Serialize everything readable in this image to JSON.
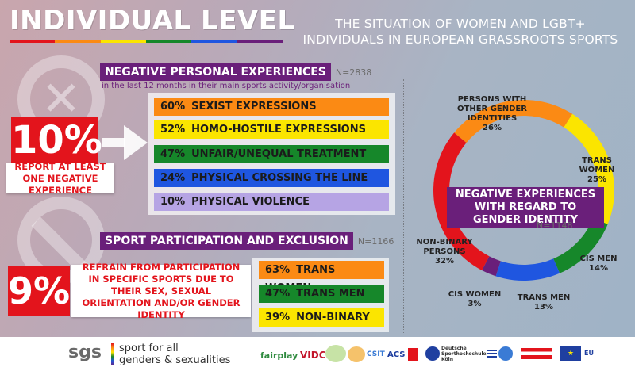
{
  "title": "INDIVIDUAL LEVEL",
  "subtitle_line1": "THE SITUATION OF WOMEN AND LGBT+",
  "subtitle_line2": "INDIVIDUALS IN EUROPEAN GRASSROOTS SPORTS",
  "colors": {
    "purple": "#6a1f7a",
    "red": "#e3141c",
    "orange": "#fb8a14",
    "yellow": "#fbe500",
    "green": "#16872a",
    "blue": "#1f56e0",
    "lavender": "#b6a4e4"
  },
  "negative": {
    "heading": "NEGATIVE PERSONAL EXPERIENCES",
    "n": "N=2838",
    "sublabel": "in the last 12 months in their main sports activity/organisation",
    "big_pct": "10%",
    "big_label": "REPORT AT LEAST ONE NEGATIVE EXPERIENCE",
    "bars": [
      {
        "pct": "60%",
        "label": "SEXIST EXPRESSIONS",
        "color": "#fb8a14"
      },
      {
        "pct": "52%",
        "label": "HOMO-HOSTILE EXPRESSIONS",
        "color": "#fbe500"
      },
      {
        "pct": "47%",
        "label": "UNFAIR/UNEQUAL TREATMENT",
        "color": "#16872a"
      },
      {
        "pct": "24%",
        "label": "PHYSICAL CROSSING THE LINE",
        "color": "#1f56e0"
      },
      {
        "pct": "10%",
        "label": "PHYSICAL VIOLENCE",
        "color": "#b6a4e4"
      }
    ]
  },
  "exclusion": {
    "heading": "SPORT PARTICIPATION AND EXCLUSION",
    "n": "N=1166",
    "big_pct": "9%",
    "big_label": "REFRAIN FROM PARTICIPATION IN SPECIFIC SPORTS DUE TO THEIR SEX, SEXUAL ORIENTATION AND/OR GENDER IDENTITY",
    "bars": [
      {
        "pct": "63%",
        "label": "TRANS WOMEN",
        "color": "#fb8a14"
      },
      {
        "pct": "47%",
        "label": "TRANS MEN",
        "color": "#16872a"
      },
      {
        "pct": "39%",
        "label": "NON-BINARY",
        "color": "#fbe500"
      }
    ]
  },
  "chart_data": {
    "type": "pie",
    "title": "NEGATIVE EXPERIENCES WITH REGARD TO GENDER IDENTITY",
    "n": "N=1148",
    "slices": [
      {
        "label": "PERSONS WITH OTHER GENDER IDENTITIES",
        "value": 26,
        "text": "26%",
        "color": "#fb8a14"
      },
      {
        "label": "TRANS WOMEN",
        "value": 25,
        "text": "25%",
        "color": "#fbe500"
      },
      {
        "label": "CIS MEN",
        "value": 14,
        "text": "14%",
        "color": "#16872a"
      },
      {
        "label": "TRANS MEN",
        "value": 13,
        "text": "13%",
        "color": "#1f56e0"
      },
      {
        "label": "CIS WOMEN",
        "value": 3,
        "text": "3%",
        "color": "#6a1f7a"
      },
      {
        "label": "NON-BINARY PERSONS",
        "value": 32,
        "text": "32%",
        "color": "#e3141c"
      }
    ]
  },
  "footer": {
    "logo": "sgs",
    "slogan_line1": "sport for all",
    "slogan_line2": "genders & sexualities",
    "partners": [
      "fairplay",
      "VIDC",
      "CSIT",
      "ACS",
      "Deutsche Sporthochschule Köln",
      "EU"
    ]
  }
}
